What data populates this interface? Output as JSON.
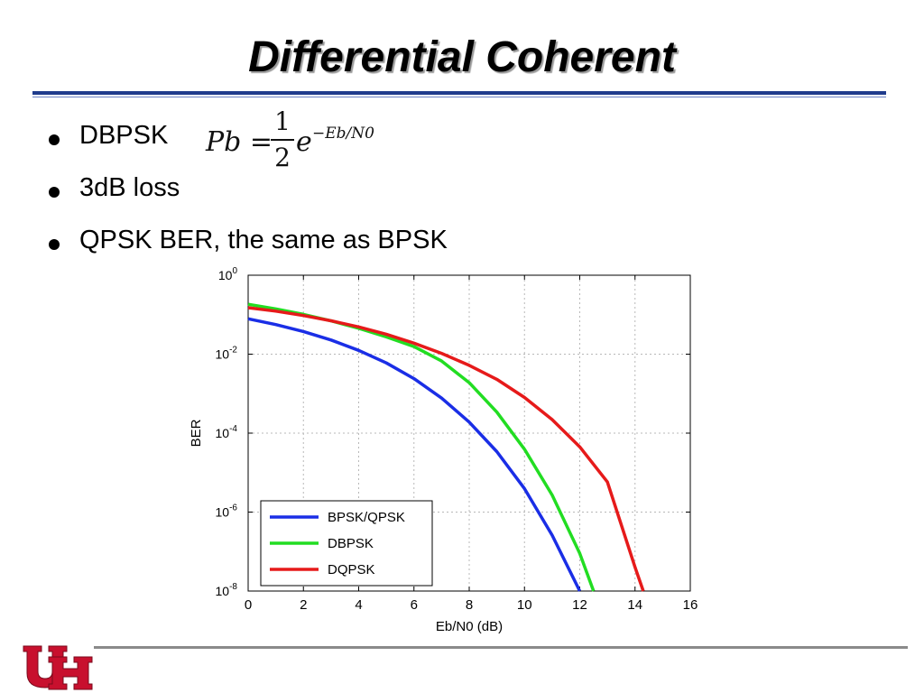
{
  "slide": {
    "title": "Differential Coherent",
    "bullets": [
      {
        "text": "DBPSK"
      },
      {
        "text": "3dB loss"
      },
      {
        "text": "QPSK BER, the same as BPSK"
      }
    ],
    "formula": {
      "lhs": "Pb =",
      "numerator": "1",
      "denominator": "2",
      "base": "e",
      "exponent": "−Eb/N0"
    },
    "logo_icon": "uh-interlocking-logo",
    "colors": {
      "title_rule": "#1f3b8c",
      "bottom_rule": "#8a8a8a",
      "logo": "#c8102e"
    }
  },
  "chart_data": {
    "type": "line",
    "xlabel": "Eb/N0 (dB)",
    "ylabel": "BER",
    "xlim": [
      0,
      16
    ],
    "ylim": [
      1e-08,
      1
    ],
    "yscale": "log",
    "grid": true,
    "xticks": [
      "0",
      "2",
      "4",
      "6",
      "8",
      "10",
      "12",
      "14",
      "16"
    ],
    "yticks": [
      {
        "base": "10",
        "exp": "0"
      },
      {
        "base": "10",
        "exp": "-2"
      },
      {
        "base": "10",
        "exp": "-4"
      },
      {
        "base": "10",
        "exp": "-6"
      },
      {
        "base": "10",
        "exp": "-8"
      }
    ],
    "legend_position": "bottom-left",
    "series": [
      {
        "name": "BPSK/QPSK",
        "color": "#1a2ee6",
        "x": [
          0,
          1,
          2,
          3,
          4,
          5,
          6,
          7,
          8,
          9,
          10,
          11,
          12
        ],
        "y": [
          0.0786,
          0.0563,
          0.0375,
          0.0229,
          0.0125,
          0.006,
          0.0024,
          0.00077,
          0.00019,
          3.4e-05,
          3.9e-06,
          2.6e-07,
          1e-08
        ]
      },
      {
        "name": "DBPSK",
        "color": "#22dd22",
        "x": [
          0,
          1,
          2,
          3,
          4,
          5,
          6,
          7,
          8,
          9,
          10,
          11,
          12,
          12.5
        ],
        "y": [
          0.184,
          0.14,
          0.102,
          0.0699,
          0.0454,
          0.0275,
          0.0156,
          0.0067,
          0.0019,
          0.00034,
          3.9e-05,
          2.7e-06,
          9e-08,
          1e-08
        ]
      },
      {
        "name": "DQPSK",
        "color": "#e61a1a",
        "x": [
          0,
          1,
          2,
          3,
          4,
          5,
          6,
          7,
          8,
          9,
          10,
          11,
          12,
          13,
          14,
          14.3
        ],
        "y": [
          0.15,
          0.123,
          0.095,
          0.07,
          0.049,
          0.032,
          0.019,
          0.0105,
          0.0052,
          0.0023,
          0.0008,
          0.00022,
          4.5e-05,
          5.8e-06,
          4e-08,
          1e-08
        ]
      }
    ]
  }
}
